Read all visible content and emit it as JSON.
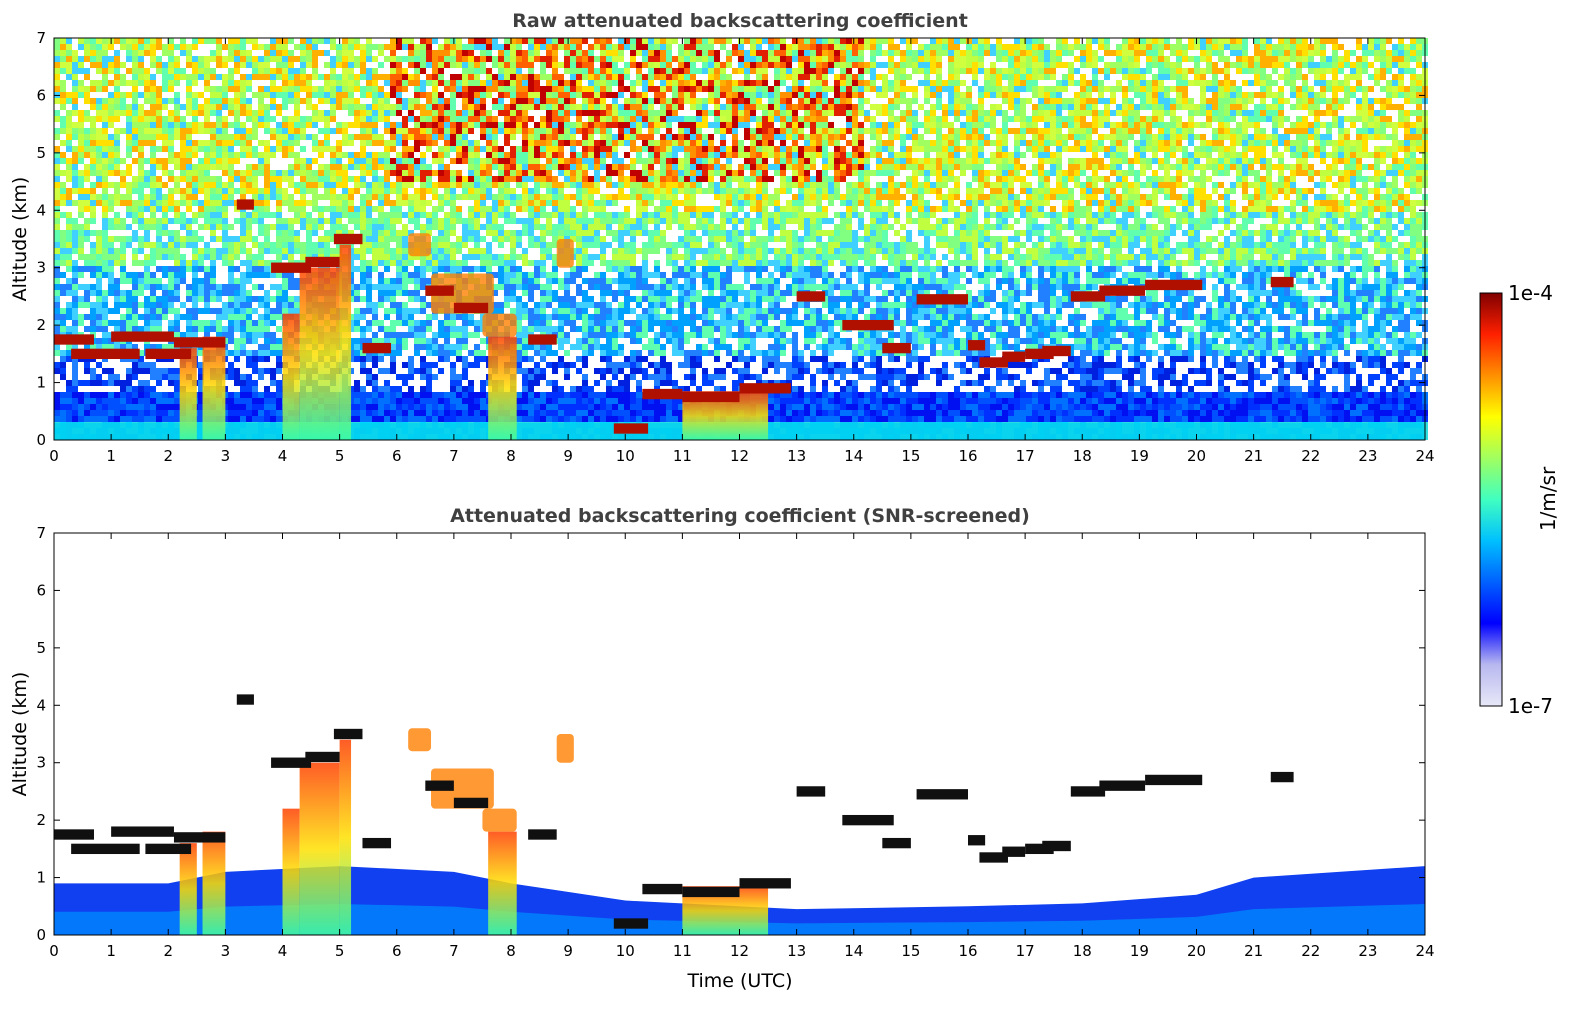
{
  "chart_data": [
    {
      "type": "heatmap",
      "title": "Raw attenuated backscattering coefficient",
      "xlabel": "",
      "ylabel": "Altitude (km)",
      "xlim": [
        0,
        24
      ],
      "ylim": [
        0,
        7
      ],
      "x_ticks": [
        "0",
        "1",
        "2",
        "3",
        "4",
        "5",
        "6",
        "7",
        "8",
        "9",
        "10",
        "11",
        "12",
        "13",
        "14",
        "15",
        "16",
        "17",
        "18",
        "19",
        "20",
        "21",
        "22",
        "23",
        "24"
      ],
      "y_ticks": [
        "0",
        "1",
        "2",
        "3",
        "4",
        "5",
        "6",
        "7"
      ],
      "layers": [
        {
          "x0": 0.0,
          "x1": 0.7,
          "alt": 1.75
        },
        {
          "x0": 0.3,
          "x1": 1.5,
          "alt": 1.5
        },
        {
          "x0": 1.0,
          "x1": 2.1,
          "alt": 1.8
        },
        {
          "x0": 1.6,
          "x1": 2.4,
          "alt": 1.5
        },
        {
          "x0": 2.1,
          "x1": 3.0,
          "alt": 1.7
        },
        {
          "x0": 3.2,
          "x1": 3.5,
          "alt": 4.1
        },
        {
          "x0": 3.8,
          "x1": 4.5,
          "alt": 3.0
        },
        {
          "x0": 4.4,
          "x1": 5.0,
          "alt": 3.1
        },
        {
          "x0": 4.9,
          "x1": 5.4,
          "alt": 3.5
        },
        {
          "x0": 5.4,
          "x1": 5.9,
          "alt": 1.6
        },
        {
          "x0": 6.5,
          "x1": 7.0,
          "alt": 2.6
        },
        {
          "x0": 7.0,
          "x1": 7.6,
          "alt": 2.3
        },
        {
          "x0": 8.3,
          "x1": 8.8,
          "alt": 1.75
        },
        {
          "x0": 9.8,
          "x1": 10.4,
          "alt": 0.2
        },
        {
          "x0": 10.3,
          "x1": 11.0,
          "alt": 0.8
        },
        {
          "x0": 11.0,
          "x1": 12.0,
          "alt": 0.75
        },
        {
          "x0": 12.0,
          "x1": 12.9,
          "alt": 0.9
        },
        {
          "x0": 13.0,
          "x1": 13.5,
          "alt": 2.5
        },
        {
          "x0": 13.8,
          "x1": 14.7,
          "alt": 2.0
        },
        {
          "x0": 14.5,
          "x1": 15.0,
          "alt": 1.6
        },
        {
          "x0": 15.1,
          "x1": 16.0,
          "alt": 2.45
        },
        {
          "x0": 16.0,
          "x1": 16.3,
          "alt": 1.65
        },
        {
          "x0": 16.2,
          "x1": 16.7,
          "alt": 1.35
        },
        {
          "x0": 16.6,
          "x1": 17.0,
          "alt": 1.45
        },
        {
          "x0": 17.0,
          "x1": 17.5,
          "alt": 1.5
        },
        {
          "x0": 17.3,
          "x1": 17.8,
          "alt": 1.55
        },
        {
          "x0": 17.8,
          "x1": 18.4,
          "alt": 2.5
        },
        {
          "x0": 18.3,
          "x1": 19.1,
          "alt": 2.6
        },
        {
          "x0": 19.1,
          "x1": 20.1,
          "alt": 2.7
        },
        {
          "x0": 21.3,
          "x1": 21.7,
          "alt": 2.75
        }
      ]
    },
    {
      "type": "heatmap",
      "title": "Attenuated backscattering coefficient (SNR-screened)",
      "xlabel": "Time (UTC)",
      "ylabel": "Altitude (km)",
      "xlim": [
        0,
        24
      ],
      "ylim": [
        0,
        7
      ],
      "x_ticks": [
        "0",
        "1",
        "2",
        "3",
        "4",
        "5",
        "6",
        "7",
        "8",
        "9",
        "10",
        "11",
        "12",
        "13",
        "14",
        "15",
        "16",
        "17",
        "18",
        "19",
        "20",
        "21",
        "22",
        "23",
        "24"
      ],
      "y_ticks": [
        "0",
        "1",
        "2",
        "3",
        "4",
        "5",
        "6",
        "7"
      ],
      "screened": true
    }
  ],
  "colorbar": {
    "label": "1/m/sr",
    "max_label": "1e-4",
    "min_label": "1e-7",
    "colors": [
      "#e8e8f8",
      "#b8b8f0",
      "#0000ff",
      "#0060ff",
      "#00c0ff",
      "#40ffc0",
      "#a0ff60",
      "#ffff00",
      "#ff9000",
      "#ff2000",
      "#800000"
    ]
  }
}
